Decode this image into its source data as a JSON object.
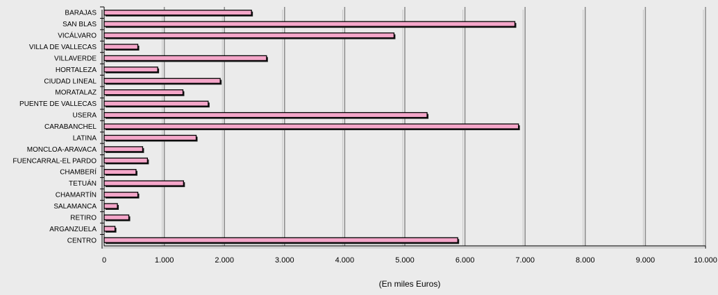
{
  "chart_data": {
    "type": "bar",
    "orientation": "horizontal",
    "categories": [
      "BARAJAS",
      "SAN BLAS",
      "VICÁLVARO",
      "VILLA DE VALLECAS",
      "VILLAVERDE",
      "HORTALEZA",
      "CIUDAD LINEAL",
      "MORATALAZ",
      "PUENTE DE VALLECAS",
      "USERA",
      "CARABANCHEL",
      "LATINA",
      "MONCLOA-ARAVACA",
      "FUENCARRAL-EL PARDO",
      "CHAMBERÍ",
      "TETUÁN",
      "CHAMARTÍN",
      "SALAMANCA",
      "RETIRO",
      "ARGANZUELA",
      "CENTRO"
    ],
    "values": [
      2450,
      6830,
      4820,
      560,
      2700,
      890,
      1930,
      1310,
      1730,
      5370,
      6890,
      1530,
      640,
      720,
      530,
      1320,
      560,
      220,
      410,
      180,
      5880
    ],
    "xlabel": "(En miles Euros)",
    "ylabel": "",
    "xlim": [
      0,
      10000
    ],
    "xticks": [
      {
        "value": 0,
        "label": "0"
      },
      {
        "value": 1000,
        "label": "1.000"
      },
      {
        "value": 2000,
        "label": "2.000"
      },
      {
        "value": 3000,
        "label": "3.000"
      },
      {
        "value": 4000,
        "label": "4.000"
      },
      {
        "value": 5000,
        "label": "5.000"
      },
      {
        "value": 6000,
        "label": "6.000"
      },
      {
        "value": 7000,
        "label": "7.000"
      },
      {
        "value": 8000,
        "label": "8.000"
      },
      {
        "value": 9000,
        "label": "9.000"
      },
      {
        "value": 10000,
        "label": "10.000"
      }
    ],
    "grid": true,
    "legend": "none",
    "colors": {
      "background": "#ebebeb",
      "bar_fill": "#f4a6c9",
      "bar_edge": "#000000",
      "bar_shadow": "#1a1a1a",
      "grid": "#8a8a8a",
      "axis": "#000000"
    }
  }
}
